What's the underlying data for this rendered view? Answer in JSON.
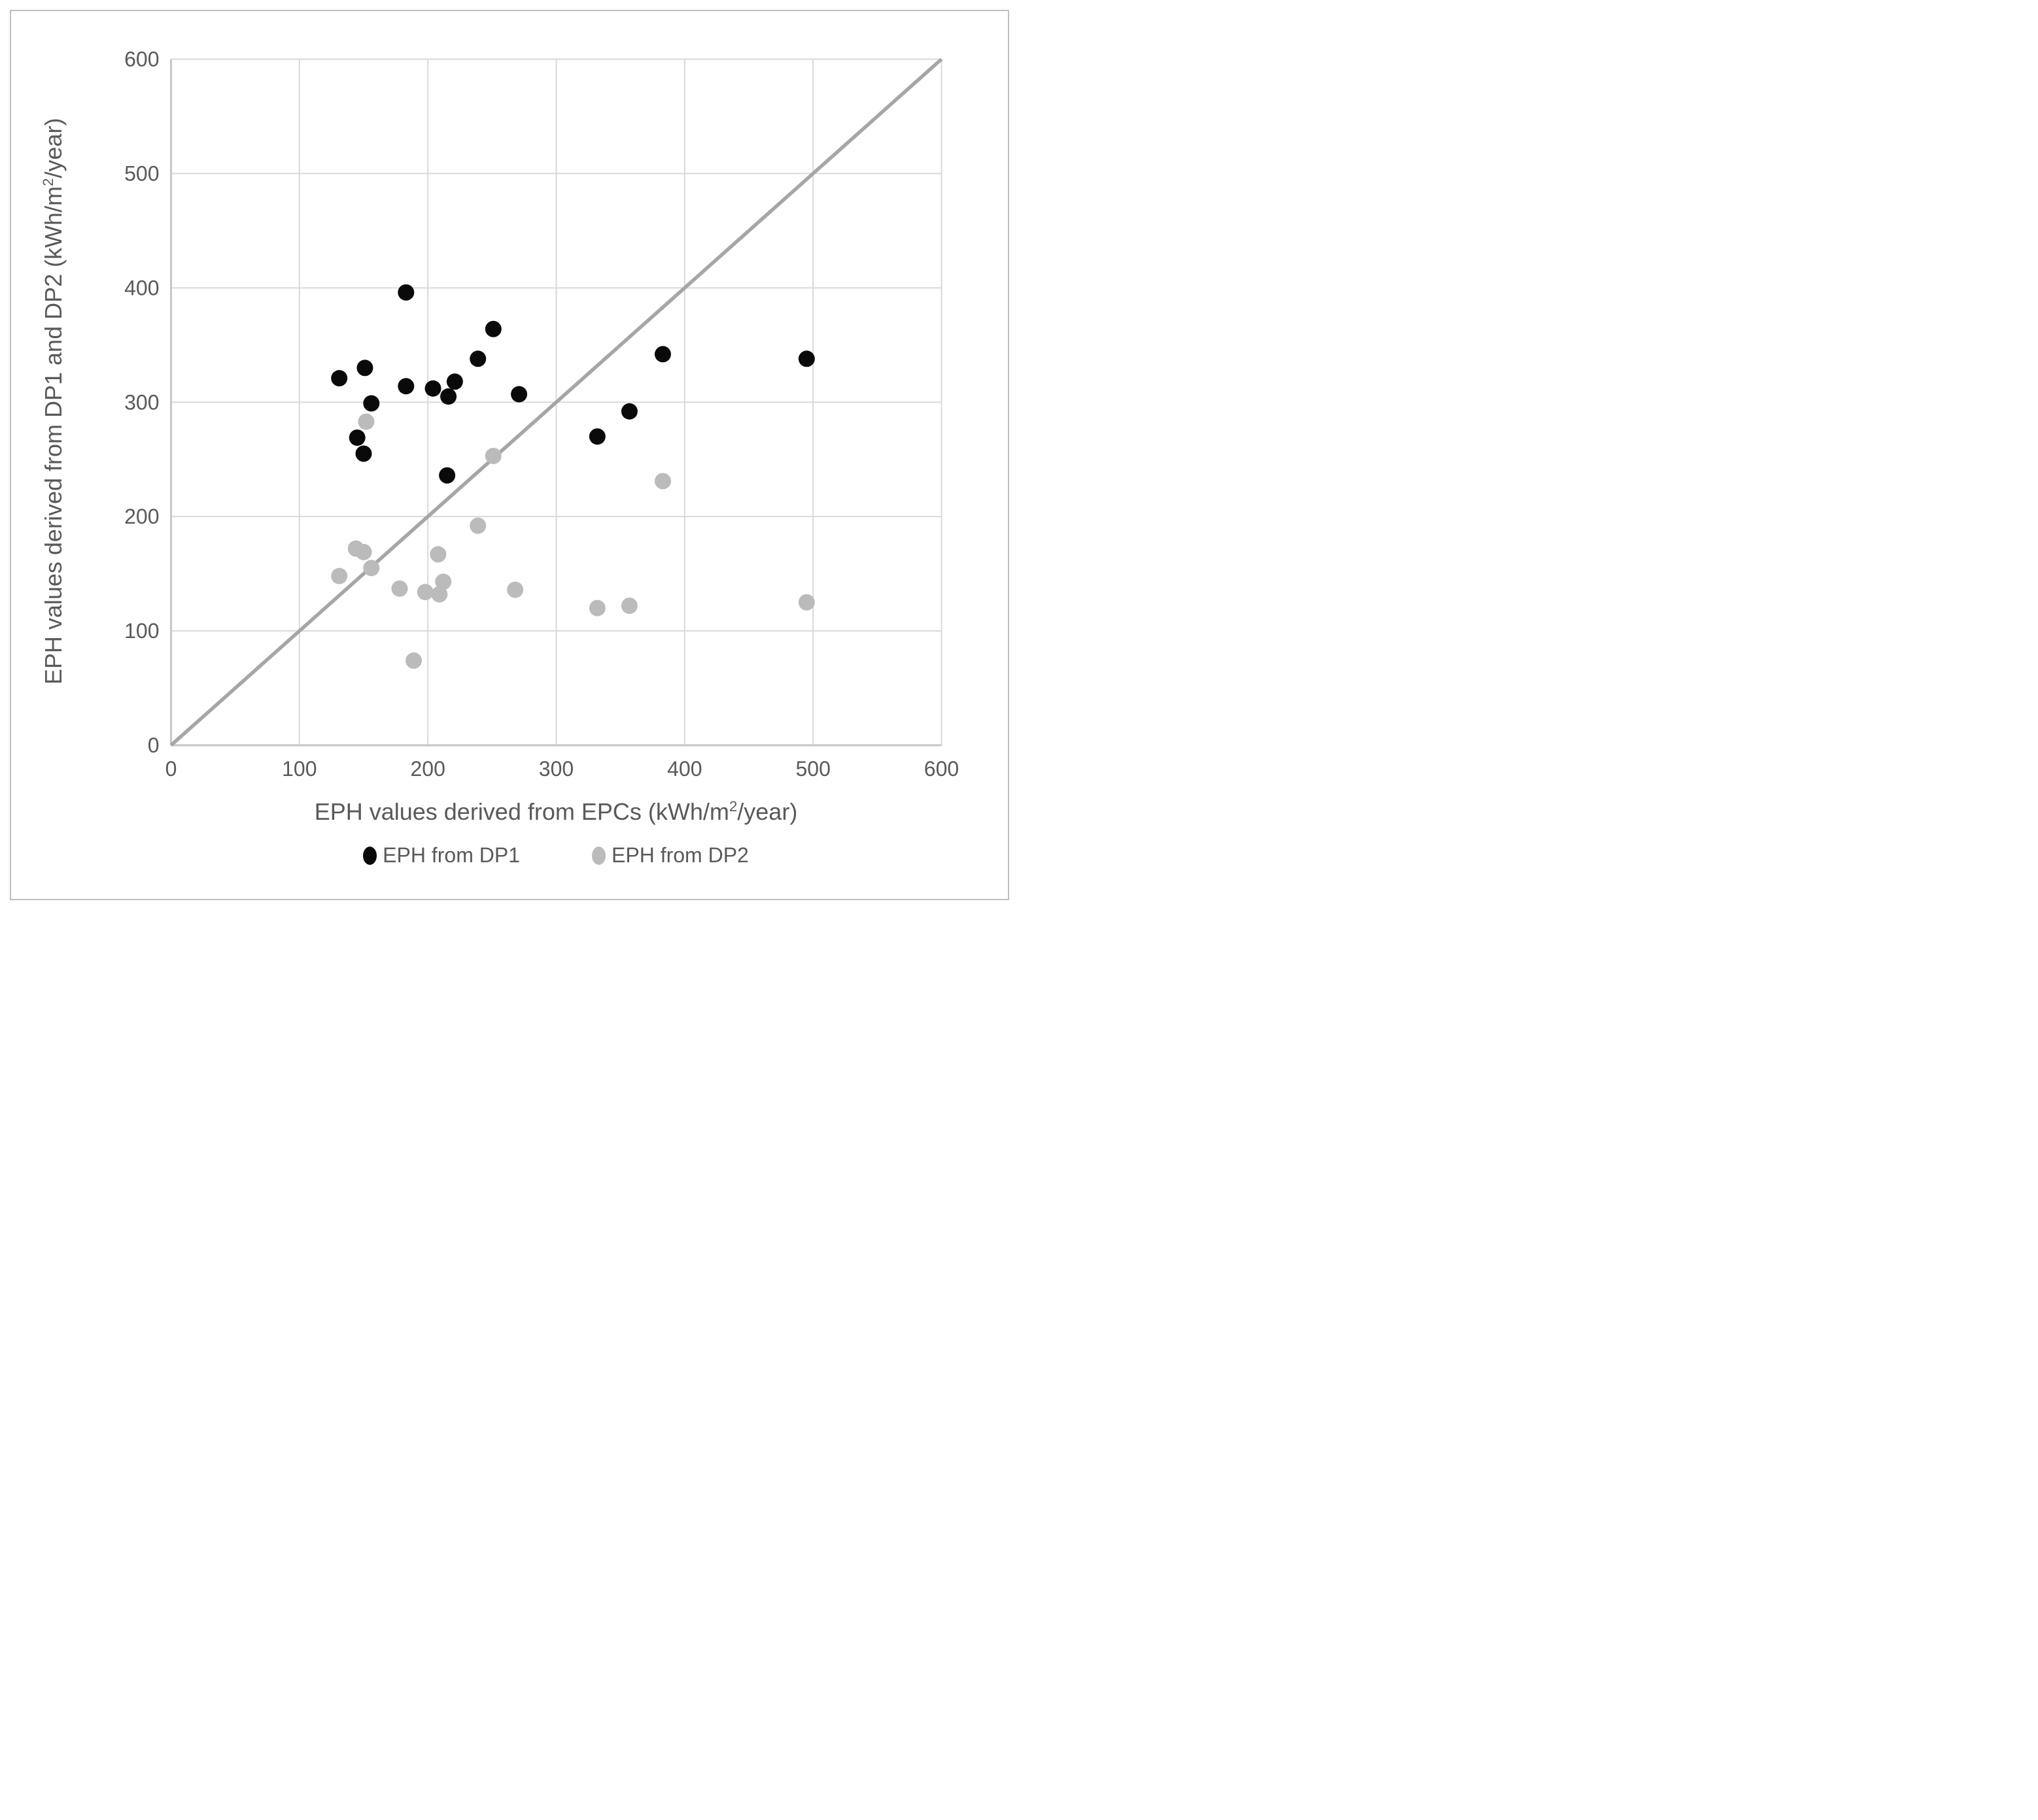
{
  "chart_data": {
    "type": "scatter",
    "title": "",
    "xlabel": {
      "pre": "EPH values derived from EPCs (kWh/m",
      "sup": "2",
      "post": "/year)"
    },
    "ylabel": {
      "pre": "EPH values derived from DP1 and DP2  (kWh/m",
      "sup": "2",
      "post": "/year)"
    },
    "xlim": [
      0,
      600
    ],
    "ylim": [
      0,
      600
    ],
    "x_ticks": [
      0,
      100,
      200,
      300,
      400,
      500,
      600
    ],
    "y_ticks": [
      0,
      100,
      200,
      300,
      400,
      500,
      600
    ],
    "grid": true,
    "legend_position": "bottom",
    "reference_line": {
      "name": "identity-line",
      "from": [
        0,
        0
      ],
      "to": [
        600,
        600
      ]
    },
    "series": [
      {
        "name": "EPH from DP1",
        "color": "#0a0a0a",
        "points": [
          [
            131,
            321
          ],
          [
            145,
            269
          ],
          [
            150,
            255
          ],
          [
            151,
            330
          ],
          [
            156,
            299
          ],
          [
            183,
            396
          ],
          [
            183,
            314
          ],
          [
            204,
            312
          ],
          [
            215,
            236
          ],
          [
            216,
            305
          ],
          [
            221,
            318
          ],
          [
            239,
            338
          ],
          [
            251,
            364
          ],
          [
            271,
            307
          ],
          [
            332,
            270
          ],
          [
            357,
            292
          ],
          [
            383,
            342
          ],
          [
            495,
            338
          ]
        ]
      },
      {
        "name": "EPH from DP2",
        "color": "#bbbbbb",
        "points": [
          [
            131,
            148
          ],
          [
            144,
            172
          ],
          [
            150,
            169
          ],
          [
            152,
            283
          ],
          [
            156,
            155
          ],
          [
            178,
            137
          ],
          [
            189,
            74
          ],
          [
            198,
            134
          ],
          [
            208,
            167
          ],
          [
            209,
            132
          ],
          [
            212,
            143
          ],
          [
            239,
            192
          ],
          [
            251,
            253
          ],
          [
            268,
            136
          ],
          [
            332,
            120
          ],
          [
            357,
            122
          ],
          [
            383,
            231
          ],
          [
            495,
            125
          ]
        ]
      }
    ]
  },
  "legend": {
    "items": [
      {
        "label": "EPH from DP1",
        "color": "#0a0a0a"
      },
      {
        "label": "EPH from DP2",
        "color": "#bbbbbb"
      }
    ]
  },
  "colors": {
    "text": "#595959",
    "gridline": "#d9d9d9",
    "axis_line": "#c6c6c6",
    "reference_line": "#a6a6a6",
    "figure_border": "#bfbfbf",
    "background": "#ffffff"
  }
}
